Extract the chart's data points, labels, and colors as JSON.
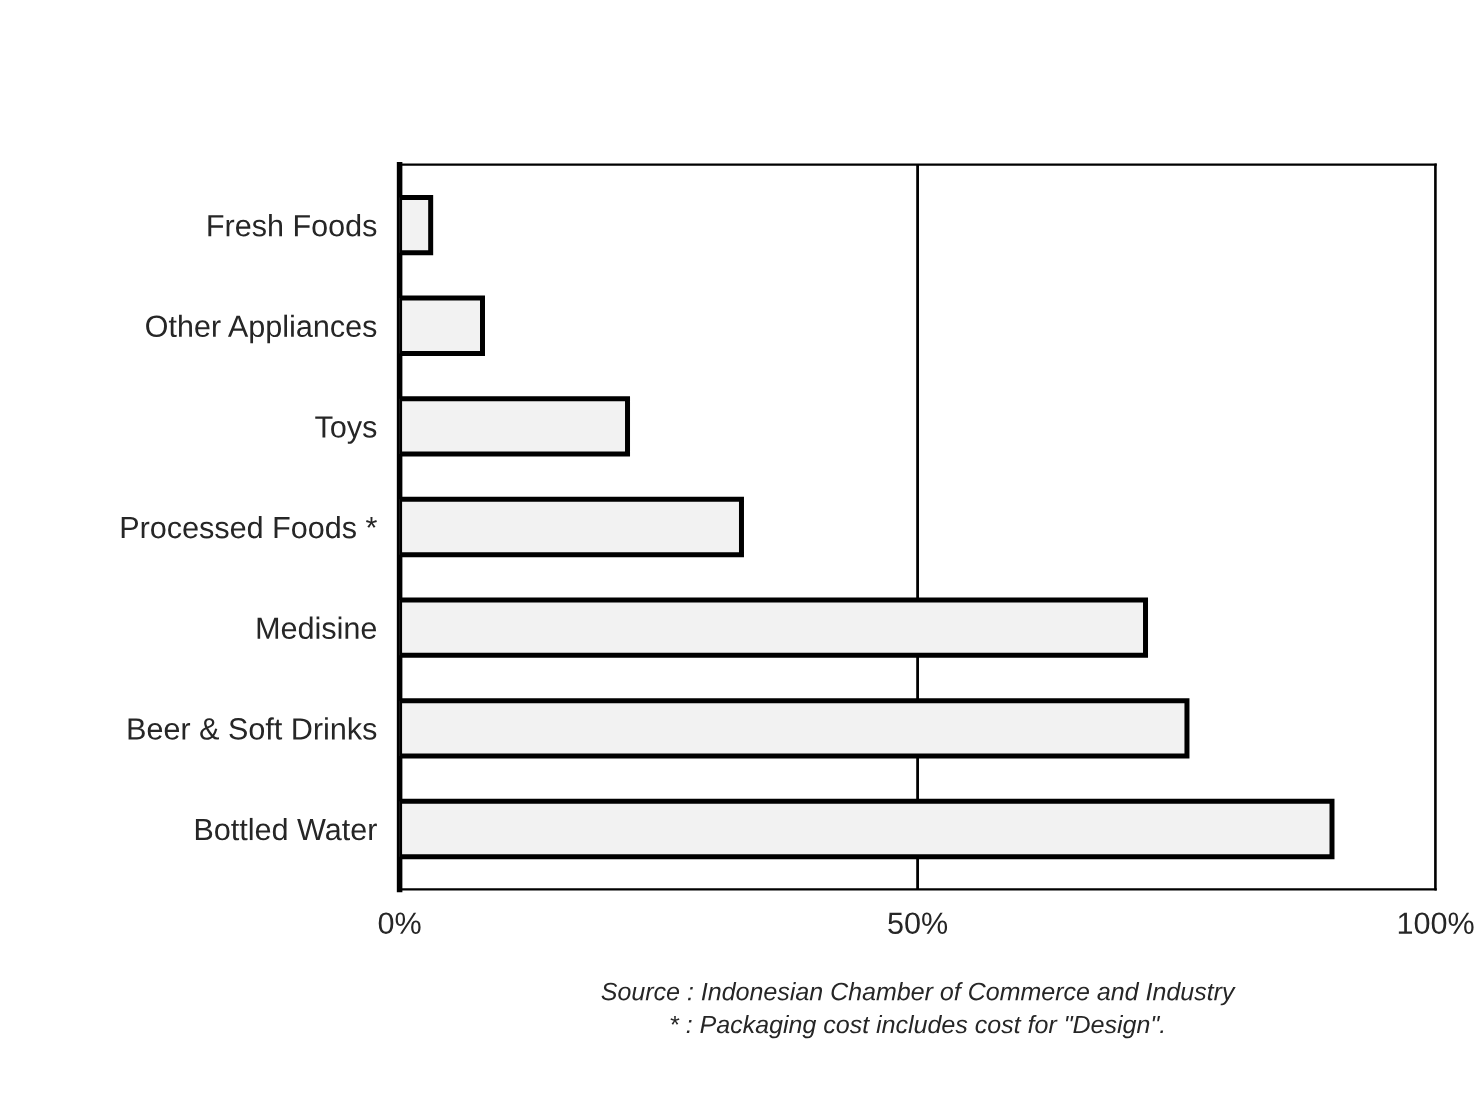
{
  "chart_data": {
    "type": "bar",
    "orientation": "horizontal",
    "categories": [
      "Fresh Foods",
      "Other Appliances",
      "Toys",
      "Processed Foods *",
      "Medisine",
      "Beer & Soft Drinks",
      "Bottled Water"
    ],
    "values": [
      3,
      8,
      22,
      33,
      72,
      76,
      90
    ],
    "color": "#f2f2f2",
    "xlim": [
      0,
      100
    ],
    "xticks": [
      {
        "value": 0,
        "label": "0%"
      },
      {
        "value": 50,
        "label": "50%"
      },
      {
        "value": 100,
        "label": "100%"
      }
    ],
    "grid": "x",
    "annotations": [
      "Source : Indonesian Chamber of Commerce and Industry",
      "* : Packaging cost includes cost for \"Design\"."
    ]
  }
}
